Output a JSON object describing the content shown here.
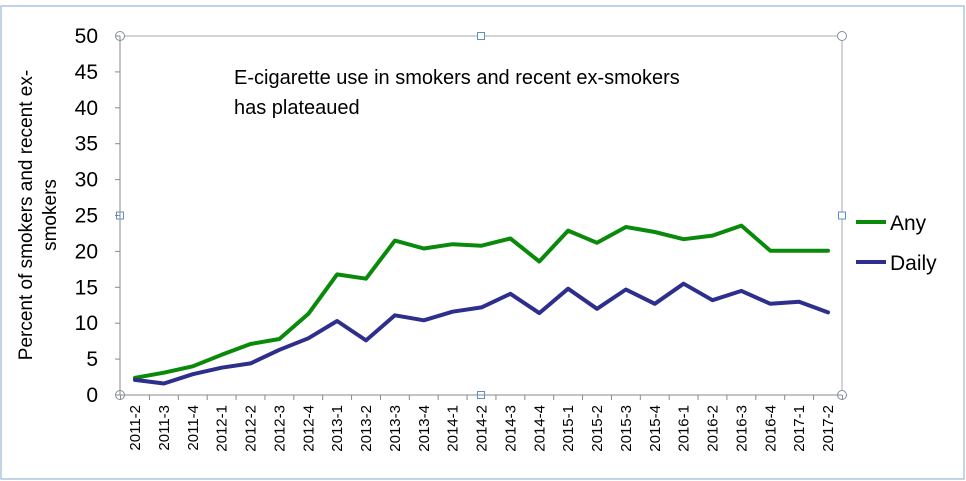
{
  "chart_data": {
    "type": "line",
    "title": "",
    "annotation_lines": [
      "E-cigarette use in smokers and recent ex-smokers",
      "has plateaued"
    ],
    "ylabel_lines": [
      "Percent of smokers and recent ex-",
      "smokers"
    ],
    "xlabel": "",
    "ylim": [
      0,
      50
    ],
    "yticks": [
      0,
      5,
      10,
      15,
      20,
      25,
      30,
      35,
      40,
      45,
      50
    ],
    "grid": false,
    "legend_position": "right",
    "categories": [
      "2011-2",
      "2011-3",
      "2011-4",
      "2012-1",
      "2012-2",
      "2012-3",
      "2012-4",
      "2013-1",
      "2013-2",
      "2013-3",
      "2013-4",
      "2014-1",
      "2014-2",
      "2014-3",
      "2014-4",
      "2015-1",
      "2015-2",
      "2015-3",
      "2015-4",
      "2016-1",
      "2016-2",
      "2016-3",
      "2016-4",
      "2017-1",
      "2017-2"
    ],
    "series": [
      {
        "name": "Any",
        "color": "#0a8a0a",
        "values": [
          2.4,
          3.1,
          4.0,
          5.6,
          7.1,
          7.8,
          11.3,
          16.8,
          16.2,
          21.5,
          20.4,
          21.0,
          20.8,
          21.8,
          18.6,
          22.9,
          21.2,
          23.4,
          22.7,
          21.7,
          22.2,
          23.6,
          20.1,
          20.1,
          20.1
        ]
      },
      {
        "name": "Daily",
        "color": "#2e2e8c",
        "values": [
          2.1,
          1.6,
          2.9,
          3.8,
          4.4,
          6.3,
          7.9,
          10.3,
          7.6,
          11.1,
          10.4,
          11.6,
          12.2,
          14.1,
          11.4,
          14.8,
          12.0,
          14.7,
          12.7,
          15.5,
          13.2,
          14.5,
          12.7,
          13.0,
          11.5
        ]
      }
    ]
  }
}
